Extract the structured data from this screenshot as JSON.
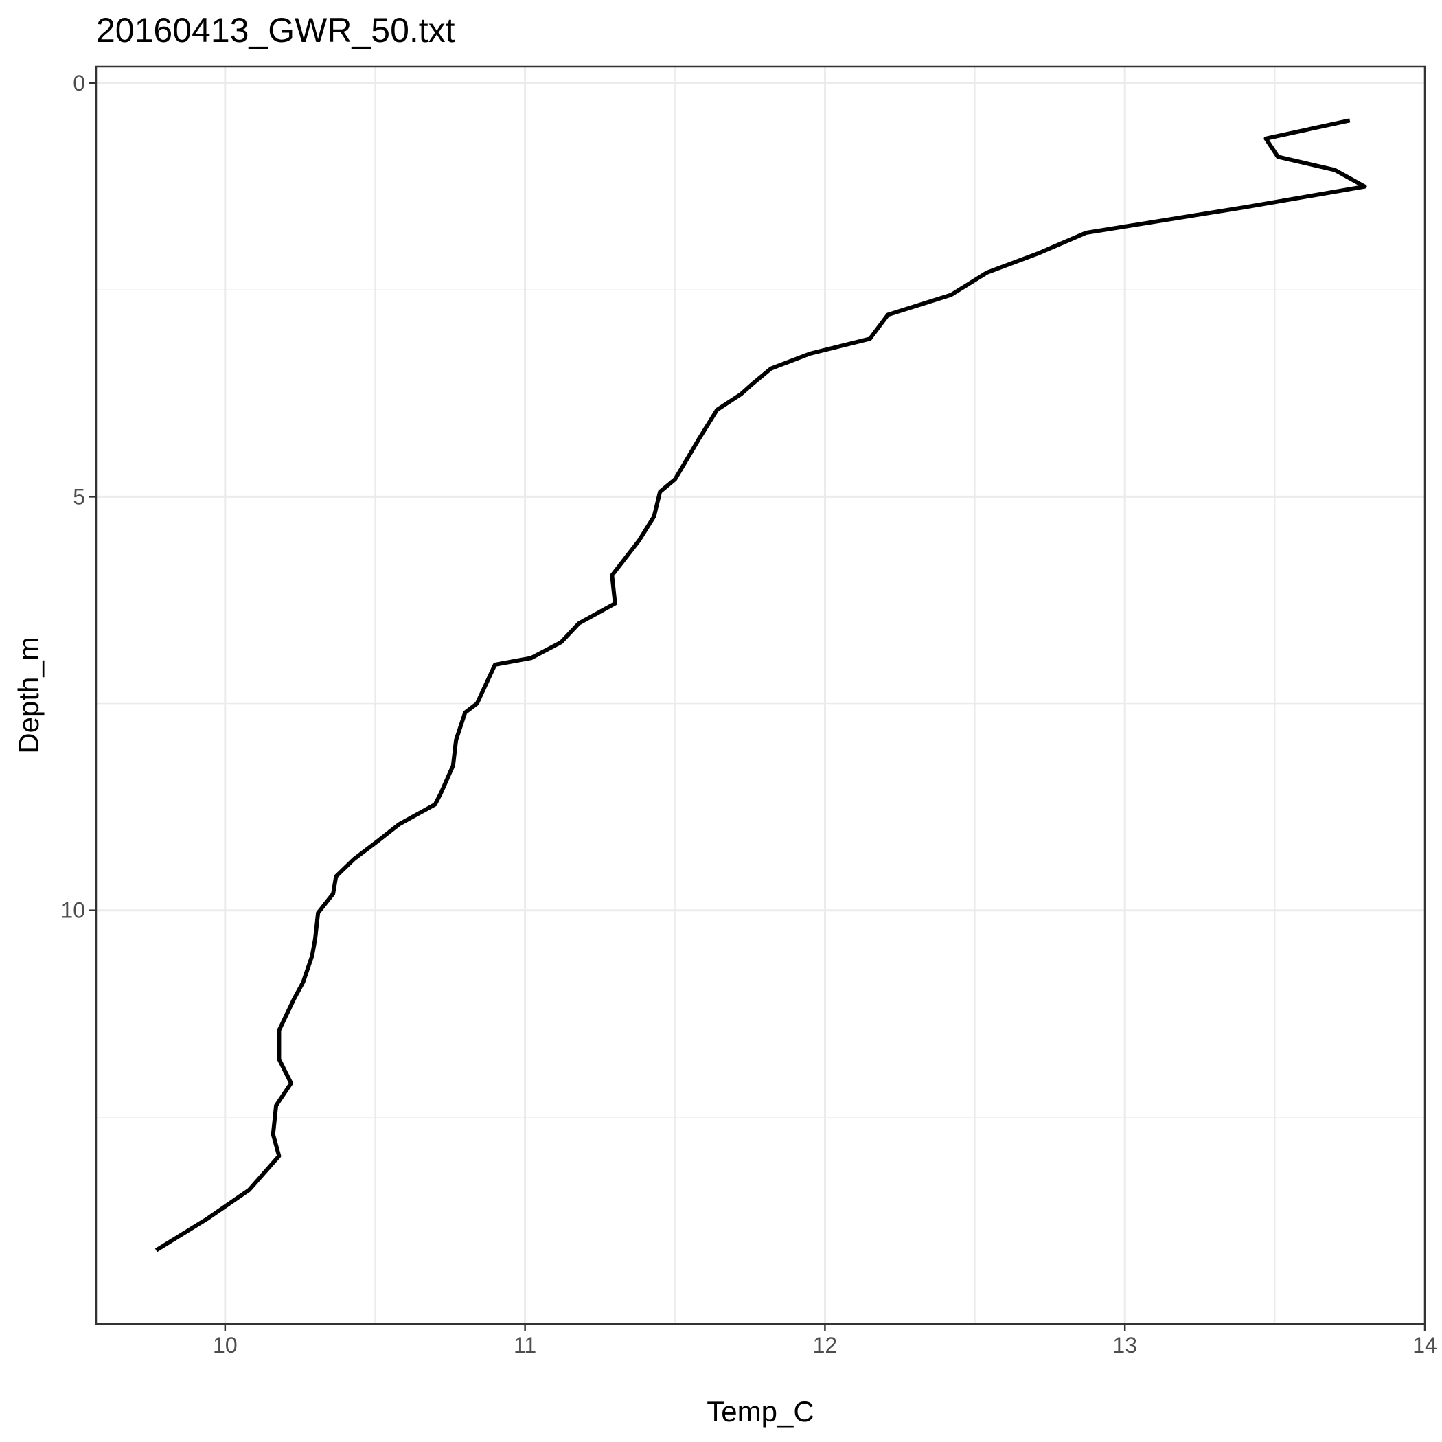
{
  "chart_data": {
    "type": "line",
    "title": "20160413_GWR_50.txt",
    "xlabel": "Temp_C",
    "ylabel": "Depth_m",
    "xlim": [
      9.57,
      14.0
    ],
    "ylim": [
      15.0,
      -0.2
    ],
    "y_reversed": true,
    "x_ticks": [
      10,
      11,
      12,
      13,
      14
    ],
    "x_minor_ticks": [
      10.5,
      11.5,
      12.5,
      13.5
    ],
    "y_ticks": [
      0,
      5,
      10
    ],
    "y_minor_ticks": [
      2.5,
      7.5,
      12.5
    ],
    "grid": true,
    "legend": "none",
    "line_color": "#000000",
    "series": [
      {
        "x": [
          13.75,
          13.47,
          13.51,
          13.7,
          13.8,
          13.4,
          12.87,
          12.71,
          12.54,
          12.42,
          12.21,
          12.15,
          11.95,
          11.82,
          11.76,
          11.72,
          11.64,
          11.58,
          11.5,
          11.45,
          11.43,
          11.38,
          11.29,
          11.3,
          11.18,
          11.12,
          11.02,
          10.9,
          10.84,
          10.8,
          10.77,
          10.76,
          10.72,
          10.7,
          10.58,
          10.51,
          10.43,
          10.37,
          10.36,
          10.31,
          10.3,
          10.29,
          10.26,
          10.23,
          10.18,
          10.18,
          10.22,
          10.17,
          10.16,
          10.18,
          10.08,
          9.94,
          9.77
        ],
        "y": [
          0.45,
          0.67,
          0.89,
          1.05,
          1.25,
          1.5,
          1.81,
          2.06,
          2.29,
          2.56,
          2.8,
          3.09,
          3.27,
          3.45,
          3.63,
          3.76,
          3.95,
          4.3,
          4.79,
          4.94,
          5.24,
          5.53,
          5.95,
          6.29,
          6.53,
          6.76,
          6.95,
          7.03,
          7.5,
          7.61,
          7.94,
          8.25,
          8.58,
          8.72,
          8.96,
          9.16,
          9.38,
          9.59,
          9.8,
          10.03,
          10.35,
          10.55,
          10.87,
          11.07,
          11.45,
          11.8,
          12.09,
          12.36,
          12.71,
          12.97,
          13.38,
          13.73,
          14.11
        ]
      }
    ]
  }
}
